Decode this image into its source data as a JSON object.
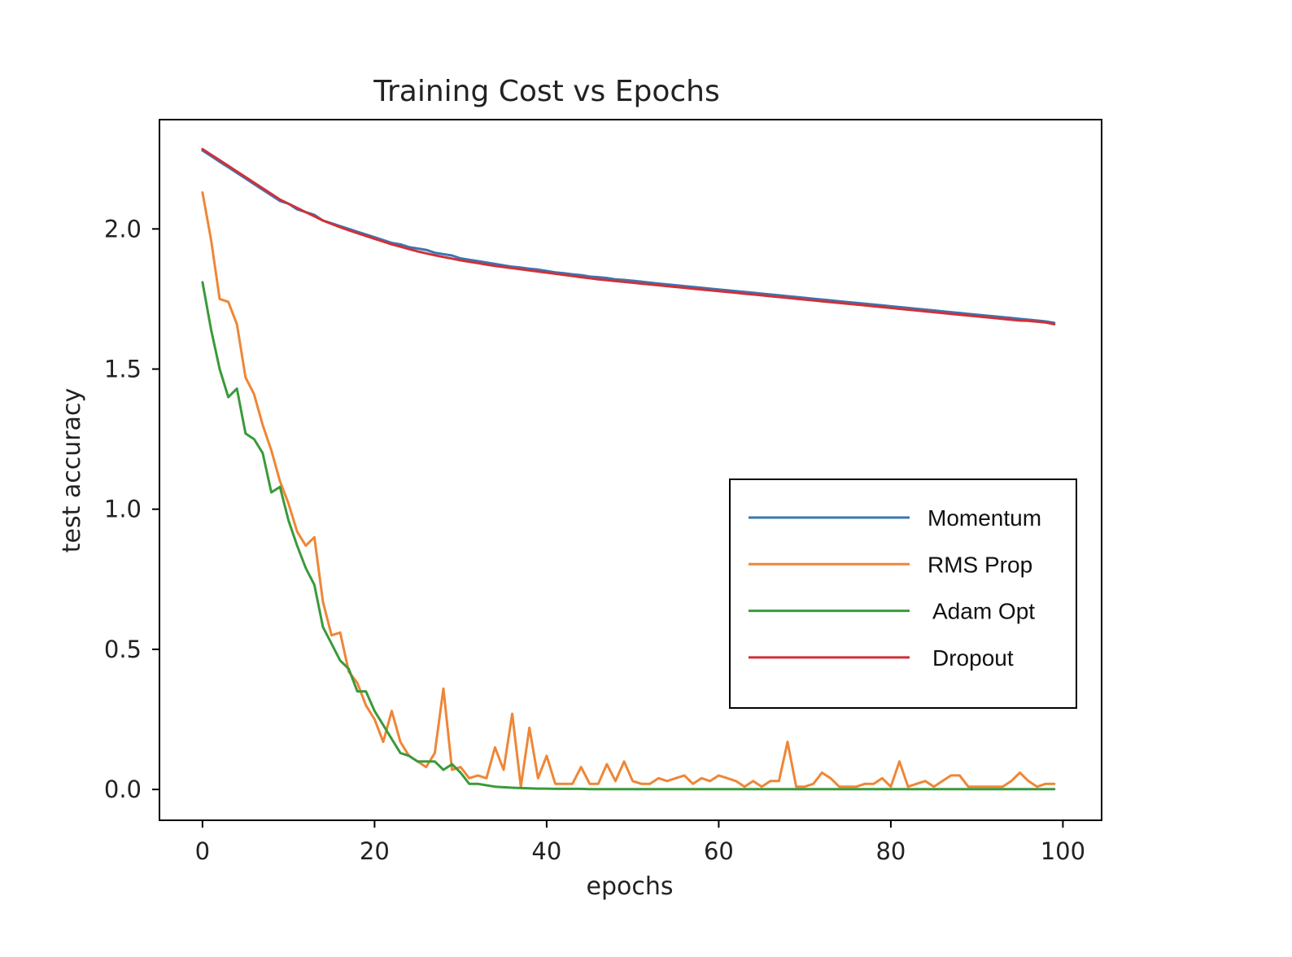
{
  "chart_data": {
    "type": "line",
    "title": "Training Cost vs Epochs",
    "xlabel": "epochs",
    "ylabel": "test accuracy",
    "xlim": [
      -5,
      104.5
    ],
    "ylim": [
      -0.11,
      2.39
    ],
    "xticks": [
      0,
      20,
      40,
      60,
      80,
      100
    ],
    "xtick_labels": [
      "0",
      "20",
      "40",
      "60",
      "80",
      "100"
    ],
    "yticks": [
      0.0,
      0.5,
      1.0,
      1.5,
      2.0
    ],
    "ytick_labels": [
      "0.0",
      "0.5",
      "1.0",
      "1.5",
      "2.0"
    ],
    "grid": false,
    "legend_position": "center-right",
    "x": [
      0,
      1,
      2,
      3,
      4,
      5,
      6,
      7,
      8,
      9,
      10,
      11,
      12,
      13,
      14,
      15,
      16,
      17,
      18,
      19,
      20,
      21,
      22,
      23,
      24,
      25,
      26,
      27,
      28,
      29,
      30,
      31,
      32,
      33,
      34,
      35,
      36,
      37,
      38,
      39,
      40,
      41,
      42,
      43,
      44,
      45,
      46,
      47,
      48,
      49,
      50,
      51,
      52,
      53,
      54,
      55,
      56,
      57,
      58,
      59,
      60,
      61,
      62,
      63,
      64,
      65,
      66,
      67,
      68,
      69,
      70,
      71,
      72,
      73,
      74,
      75,
      76,
      77,
      78,
      79,
      80,
      81,
      82,
      83,
      84,
      85,
      86,
      87,
      88,
      89,
      90,
      91,
      92,
      93,
      94,
      95,
      96,
      97,
      98,
      99
    ],
    "series": [
      {
        "name": "Momentum",
        "color": "#3b75af",
        "values": [
          2.28,
          2.26,
          2.24,
          2.22,
          2.2,
          2.18,
          2.16,
          2.14,
          2.12,
          2.1,
          2.09,
          2.07,
          2.06,
          2.05,
          2.03,
          2.02,
          2.01,
          2.0,
          1.99,
          1.98,
          1.97,
          1.96,
          1.95,
          1.945,
          1.935,
          1.93,
          1.925,
          1.915,
          1.91,
          1.905,
          1.895,
          1.89,
          1.885,
          1.88,
          1.875,
          1.87,
          1.865,
          1.862,
          1.858,
          1.855,
          1.85,
          1.845,
          1.842,
          1.838,
          1.835,
          1.83,
          1.828,
          1.825,
          1.82,
          1.818,
          1.815,
          1.812,
          1.808,
          1.805,
          1.802,
          1.799,
          1.796,
          1.793,
          1.79,
          1.787,
          1.784,
          1.781,
          1.778,
          1.775,
          1.772,
          1.769,
          1.766,
          1.763,
          1.76,
          1.757,
          1.754,
          1.751,
          1.748,
          1.745,
          1.742,
          1.739,
          1.736,
          1.733,
          1.73,
          1.727,
          1.724,
          1.721,
          1.718,
          1.715,
          1.712,
          1.709,
          1.706,
          1.703,
          1.7,
          1.697,
          1.694,
          1.691,
          1.688,
          1.685,
          1.682,
          1.679,
          1.676,
          1.673,
          1.67,
          1.665
        ]
      },
      {
        "name": "RMS Prop",
        "color": "#ef8636",
        "values": [
          2.13,
          1.96,
          1.75,
          1.74,
          1.66,
          1.47,
          1.41,
          1.3,
          1.21,
          1.1,
          1.02,
          0.92,
          0.87,
          0.9,
          0.67,
          0.55,
          0.56,
          0.42,
          0.38,
          0.3,
          0.25,
          0.17,
          0.28,
          0.17,
          0.12,
          0.1,
          0.08,
          0.13,
          0.36,
          0.07,
          0.08,
          0.04,
          0.05,
          0.04,
          0.15,
          0.07,
          0.27,
          0.01,
          0.22,
          0.04,
          0.12,
          0.02,
          0.02,
          0.02,
          0.08,
          0.02,
          0.02,
          0.09,
          0.03,
          0.1,
          0.03,
          0.02,
          0.02,
          0.04,
          0.03,
          0.04,
          0.05,
          0.02,
          0.04,
          0.03,
          0.05,
          0.04,
          0.03,
          0.01,
          0.03,
          0.01,
          0.03,
          0.03,
          0.17,
          0.01,
          0.01,
          0.02,
          0.06,
          0.04,
          0.01,
          0.01,
          0.01,
          0.02,
          0.02,
          0.04,
          0.01,
          0.1,
          0.01,
          0.02,
          0.03,
          0.01,
          0.03,
          0.05,
          0.05,
          0.01,
          0.01,
          0.01,
          0.01,
          0.01,
          0.03,
          0.06,
          0.03,
          0.01,
          0.02,
          0.02
        ]
      },
      {
        "name": "Adam Opt",
        "color": "#3a9a3a",
        "values": [
          1.81,
          1.64,
          1.5,
          1.4,
          1.43,
          1.27,
          1.25,
          1.2,
          1.06,
          1.08,
          0.96,
          0.87,
          0.79,
          0.73,
          0.58,
          0.52,
          0.46,
          0.43,
          0.35,
          0.35,
          0.28,
          0.23,
          0.18,
          0.13,
          0.12,
          0.1,
          0.1,
          0.1,
          0.07,
          0.09,
          0.06,
          0.02,
          0.02,
          0.015,
          0.01,
          0.008,
          0.006,
          0.005,
          0.004,
          0.003,
          0.003,
          0.002,
          0.002,
          0.002,
          0.002,
          0.001,
          0.001,
          0.001,
          0.001,
          0.001,
          0.001,
          0.001,
          0.001,
          0.001,
          0.001,
          0.001,
          0.001,
          0.001,
          0.001,
          0.001,
          0.001,
          0.001,
          0.001,
          0.001,
          0.001,
          0.001,
          0.001,
          0.001,
          0.001,
          0.001,
          0.001,
          0.001,
          0.001,
          0.001,
          0.001,
          0.001,
          0.001,
          0.001,
          0.001,
          0.001,
          0.001,
          0.001,
          0.001,
          0.001,
          0.001,
          0.001,
          0.001,
          0.001,
          0.001,
          0.001,
          0.001,
          0.001,
          0.001,
          0.001,
          0.001,
          0.001,
          0.001,
          0.001,
          0.001,
          0.001
        ]
      },
      {
        "name": "Dropout",
        "color": "#d0303a",
        "values": [
          2.285,
          2.265,
          2.245,
          2.225,
          2.205,
          2.185,
          2.165,
          2.145,
          2.125,
          2.105,
          2.09,
          2.075,
          2.06,
          2.045,
          2.03,
          2.018,
          2.006,
          1.995,
          1.985,
          1.975,
          1.965,
          1.955,
          1.945,
          1.937,
          1.928,
          1.92,
          1.913,
          1.906,
          1.9,
          1.894,
          1.888,
          1.883,
          1.878,
          1.873,
          1.868,
          1.864,
          1.86,
          1.856,
          1.852,
          1.848,
          1.844,
          1.84,
          1.836,
          1.832,
          1.828,
          1.824,
          1.82,
          1.817,
          1.814,
          1.811,
          1.808,
          1.805,
          1.802,
          1.799,
          1.796,
          1.793,
          1.79,
          1.787,
          1.784,
          1.781,
          1.778,
          1.775,
          1.772,
          1.769,
          1.766,
          1.763,
          1.76,
          1.757,
          1.754,
          1.751,
          1.748,
          1.745,
          1.742,
          1.739,
          1.736,
          1.733,
          1.73,
          1.727,
          1.724,
          1.721,
          1.718,
          1.715,
          1.712,
          1.709,
          1.706,
          1.703,
          1.7,
          1.697,
          1.694,
          1.691,
          1.688,
          1.685,
          1.682,
          1.679,
          1.676,
          1.673,
          1.672,
          1.669,
          1.666,
          1.66
        ]
      }
    ]
  }
}
